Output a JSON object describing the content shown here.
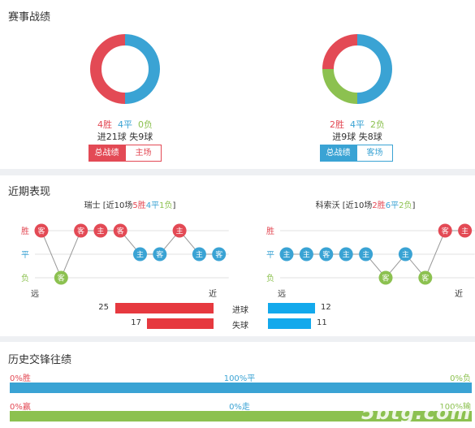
{
  "colors": {
    "red": "#e34a55",
    "blue": "#3aa3d4",
    "green": "#8cc150",
    "grey_line": "#e0e0e0"
  },
  "record": {
    "title": "赛事战绩",
    "home": {
      "win_text": "4胜",
      "draw_text": "4平",
      "loss_text": "0负",
      "goals_text": "进21球 失9球",
      "donut": {
        "win": 4,
        "draw": 4,
        "loss": 0
      },
      "tab_active": "总战绩",
      "tab_other": "主场"
    },
    "away": {
      "win_text": "2胜",
      "draw_text": "4平",
      "loss_text": "2负",
      "goals_text": "进9球 失8球",
      "donut": {
        "win": 2,
        "draw": 4,
        "loss": 2
      },
      "tab_active": "总战绩",
      "tab_other": "客场"
    }
  },
  "recent": {
    "title": "近期表现",
    "row_labels": {
      "win": "胜",
      "draw": "平",
      "loss": "负"
    },
    "axis_far": "远",
    "axis_near": "近",
    "home": {
      "team": "瑞士",
      "summary_prefix": " [近10场",
      "wins": "5胜",
      "draws": "4平",
      "losses": "1负",
      "summary_suffix": "]",
      "form": [
        {
          "r": "win",
          "t": "客"
        },
        {
          "r": "loss",
          "t": "客"
        },
        {
          "r": "win",
          "t": "客"
        },
        {
          "r": "win",
          "t": "主"
        },
        {
          "r": "win",
          "t": "客"
        },
        {
          "r": "draw",
          "t": "主"
        },
        {
          "r": "draw",
          "t": "客"
        },
        {
          "r": "win",
          "t": "主"
        },
        {
          "r": "draw",
          "t": "主"
        },
        {
          "r": "draw",
          "t": "客"
        }
      ],
      "goals_for": 25,
      "goals_against": 17
    },
    "away": {
      "team": "科索沃",
      "summary_prefix": " [近10场",
      "wins": "2胜",
      "draws": "6平",
      "losses": "2负",
      "summary_suffix": "]",
      "form": [
        {
          "r": "draw",
          "t": "主"
        },
        {
          "r": "draw",
          "t": "主"
        },
        {
          "r": "draw",
          "t": "客"
        },
        {
          "r": "draw",
          "t": "主"
        },
        {
          "r": "draw",
          "t": "主"
        },
        {
          "r": "loss",
          "t": "客"
        },
        {
          "r": "draw",
          "t": "主"
        },
        {
          "r": "loss",
          "t": "客"
        },
        {
          "r": "win",
          "t": "客"
        },
        {
          "r": "win",
          "t": "主"
        }
      ],
      "goals_for": 12,
      "goals_against": 11
    },
    "scored_label": "进球",
    "conceded_label": "失球"
  },
  "h2h": {
    "title": "历史交锋往绩",
    "row1": {
      "left": "0%胜",
      "mid": "100%平",
      "right": "0%负",
      "fill": 1.0
    },
    "row2": {
      "left": "0%赢",
      "mid": "0%走",
      "right": "100%输",
      "fill": 1.0
    }
  },
  "watermark": "5btg.com"
}
